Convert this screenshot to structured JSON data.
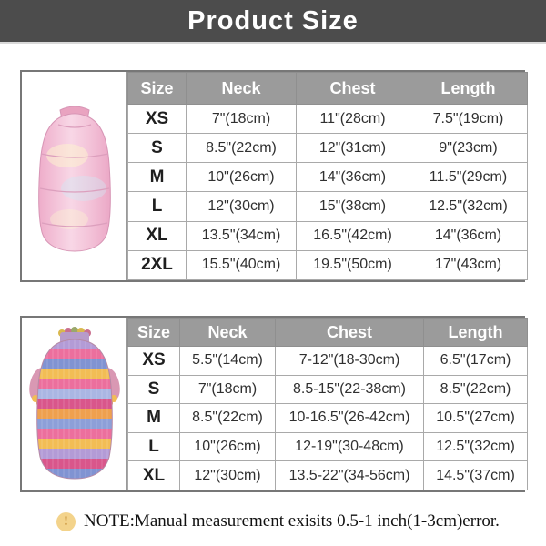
{
  "title": "Product Size",
  "table1": {
    "product": "pink-iridescent-puffer-vest",
    "headers": [
      "Size",
      "Neck",
      "Chest",
      "Length"
    ],
    "rows": [
      [
        "XS",
        "7\"(18cm)",
        "11\"(28cm)",
        "7.5\"(19cm)"
      ],
      [
        "S",
        "8.5\"(22cm)",
        "12\"(31cm)",
        "9\"(23cm)"
      ],
      [
        "M",
        "10\"(26cm)",
        "14\"(36cm)",
        "11.5\"(29cm)"
      ],
      [
        "L",
        "12\"(30cm)",
        "15\"(38cm)",
        "12.5\"(32cm)"
      ],
      [
        "XL",
        "13.5\"(34cm)",
        "16.5\"(42cm)",
        "14\"(36cm)"
      ],
      [
        "2XL",
        "15.5\"(40cm)",
        "19.5\"(50cm)",
        "17\"(43cm)"
      ]
    ]
  },
  "table2": {
    "product": "rainbow-striped-ribbed-shirt",
    "headers": [
      "Size",
      "Neck",
      "Chest",
      "Length"
    ],
    "rows": [
      [
        "XS",
        "5.5\"(14cm)",
        "7-12\"(18-30cm)",
        "6.5\"(17cm)"
      ],
      [
        "S",
        "7\"(18cm)",
        "8.5-15\"(22-38cm)",
        "8.5\"(22cm)"
      ],
      [
        "M",
        "8.5\"(22cm)",
        "10-16.5\"(26-42cm)",
        "10.5\"(27cm)"
      ],
      [
        "L",
        "10\"(26cm)",
        "12-19\"(30-48cm)",
        "12.5\"(32cm)"
      ],
      [
        "XL",
        "12\"(30cm)",
        "13.5-22\"(34-56cm)",
        "14.5\"(37cm)"
      ]
    ]
  },
  "note": {
    "icon": "exclamation-icon",
    "icon_glyph": "!",
    "text": "NOTE:Manual measurement exisits 0.5-1 inch(1-3cm)error."
  },
  "colors": {
    "title_bar_bg": "#4c4c4c",
    "title_text": "#ffffff",
    "header_bg": "#9b9b9b",
    "header_text": "#ffffff",
    "outer_border": "#777777",
    "cell_border": "#a9a9a9",
    "cell_text": "#303030",
    "note_icon_bg": "#f3d38b",
    "note_icon_fg": "#c8923a"
  }
}
